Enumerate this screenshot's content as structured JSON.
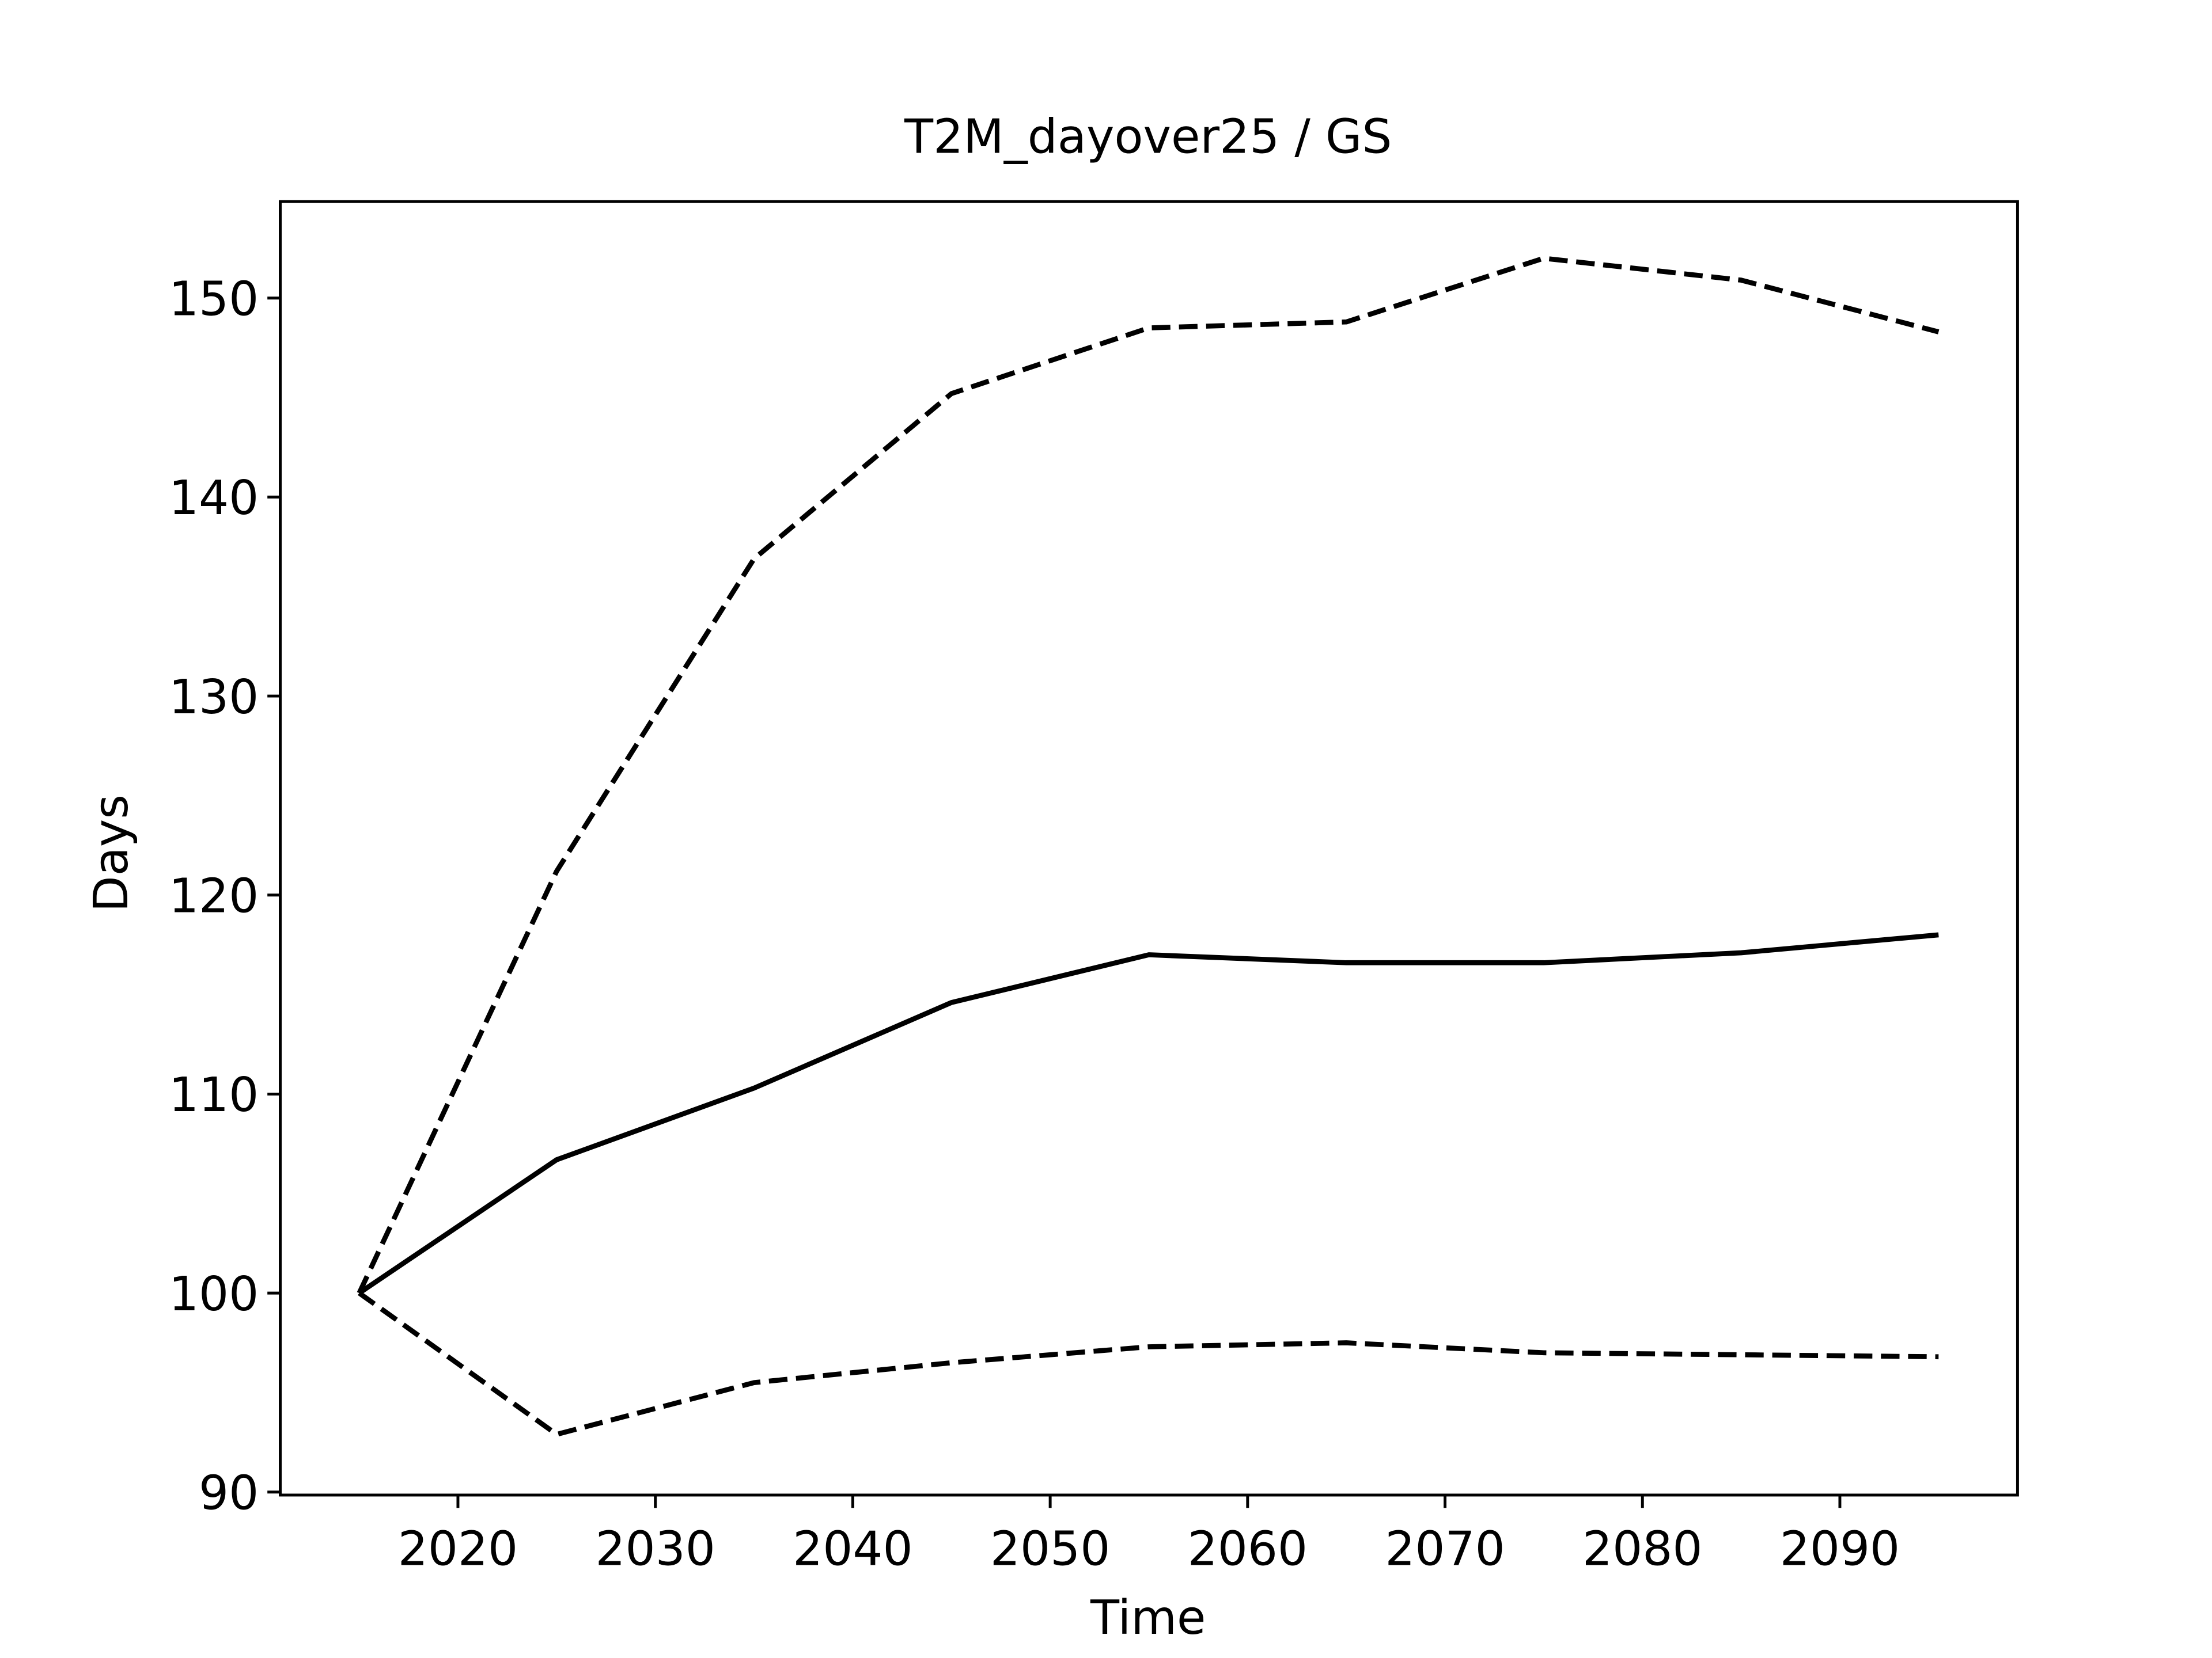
{
  "chart_data": {
    "type": "line",
    "title": "T2M_dayover25 / GS",
    "xlabel": "Time",
    "ylabel": "Days",
    "x": [
      2015,
      2025,
      2035,
      2045,
      2055,
      2065,
      2075,
      2085,
      2095
    ],
    "series": [
      {
        "color": "#000000",
        "linestyle": "solid",
        "values": [
          100,
          106.7,
          110.3,
          114.6,
          117.0,
          116.6,
          116.6,
          117.1,
          118.0
        ]
      },
      {
        "color": "#000000",
        "linestyle": "dashed",
        "values": [
          100,
          121.2,
          136.9,
          145.2,
          148.5,
          148.8,
          152.0,
          150.9,
          148.3
        ]
      },
      {
        "color": "#000000",
        "linestyle": "dashed",
        "values": [
          100,
          92.9,
          95.5,
          96.5,
          97.3,
          97.5,
          97.0,
          96.9,
          96.8
        ]
      }
    ],
    "xlim": [
      2011,
      2099
    ],
    "xticks": [
      2020,
      2030,
      2040,
      2050,
      2060,
      2070,
      2080,
      2090
    ],
    "ylim": [
      89.85,
      154.85
    ],
    "yticks": [
      90,
      100,
      110,
      120,
      130,
      140,
      150
    ],
    "grid": false
  }
}
